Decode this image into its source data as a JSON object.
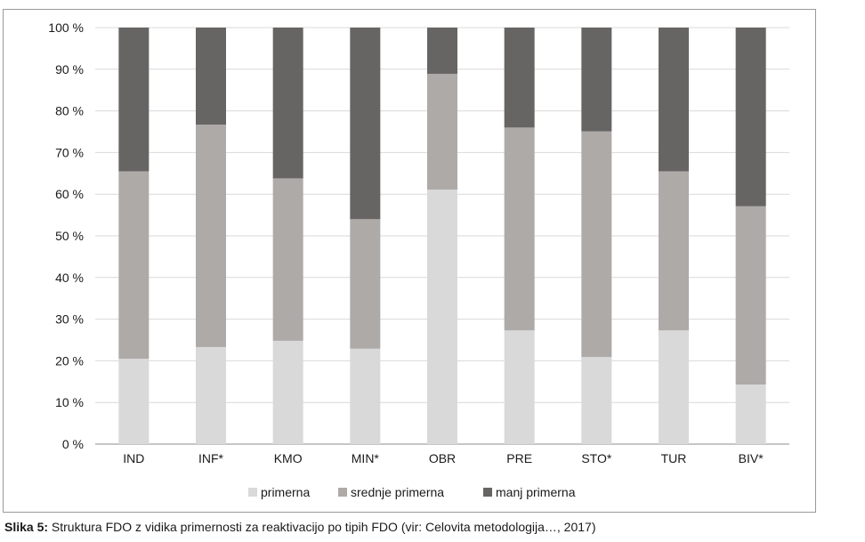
{
  "chart_data": {
    "type": "bar",
    "stacked": true,
    "categories": [
      "IND",
      "INF*",
      "KMO",
      "MIN*",
      "OBR",
      "PRE",
      "STO*",
      "TUR",
      "BIV*"
    ],
    "series": [
      {
        "name": "primerna",
        "color": "#d9d9d9",
        "values": [
          20.5,
          23.3,
          24.8,
          22.9,
          61.1,
          27.3,
          20.9,
          27.3,
          14.3
        ]
      },
      {
        "name": "srednje primerna",
        "color": "#aeaaa8",
        "values": [
          45.0,
          53.4,
          39.0,
          31.1,
          27.8,
          48.7,
          54.2,
          38.2,
          42.8
        ]
      },
      {
        "name": "manj primerna",
        "color": "#666564",
        "values": [
          34.5,
          23.3,
          36.2,
          46.0,
          11.1,
          24.0,
          24.9,
          34.5,
          42.9
        ]
      }
    ],
    "y_tick_labels": [
      "0 %",
      "10 %",
      "20 %",
      "30 %",
      "40 %",
      "50 %",
      "60 %",
      "70 %",
      "80 %",
      "90 %",
      "100 %"
    ],
    "ylim": [
      0,
      100
    ],
    "grid": true,
    "legend_position": "bottom"
  },
  "caption": {
    "label": "Slika 5:",
    "text": " Struktura FDO z vidika primernosti za reaktivacijo po tipih FDO (vir: Celovita metodologija…, 2017)"
  }
}
